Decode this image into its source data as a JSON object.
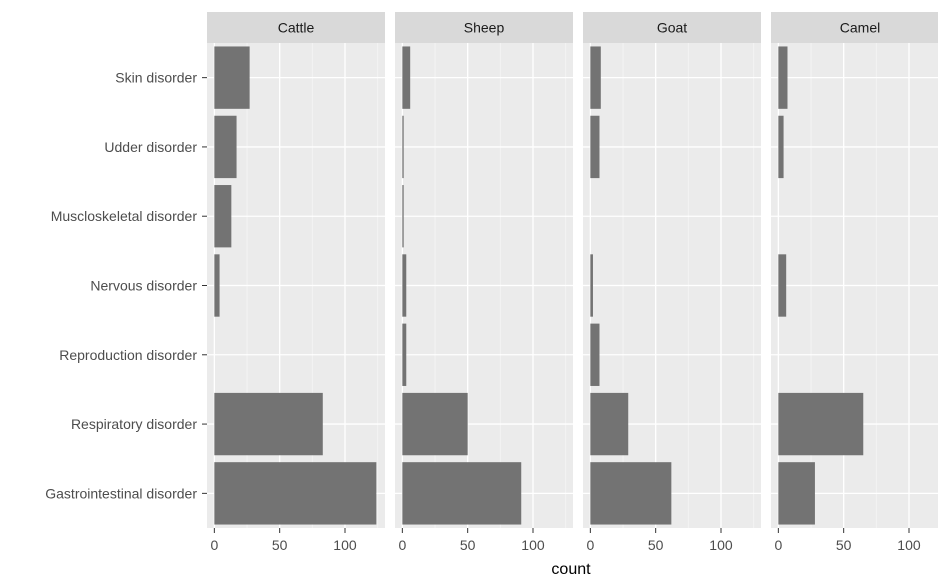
{
  "chart_data": {
    "type": "bar",
    "orientation": "horizontal",
    "faceted": true,
    "xlabel": "count",
    "ylabel": "",
    "xlim": [
      0,
      125
    ],
    "x_ticks": [
      0,
      50,
      100
    ],
    "grid": true,
    "categories": [
      "Skin disorder",
      "Udder disorder",
      "Muscloskeletal disorder",
      "Nervous disorder",
      "Reproduction disorder",
      "Respiratory disorder",
      "Gastrointestinal disorder"
    ],
    "series": [
      {
        "name": "Cattle",
        "values": [
          27,
          17,
          13,
          4,
          0,
          83,
          124
        ]
      },
      {
        "name": "Sheep",
        "values": [
          6,
          1,
          1,
          3,
          3,
          50,
          91
        ]
      },
      {
        "name": "Goat",
        "values": [
          8,
          7,
          0,
          2,
          7,
          29,
          62
        ]
      },
      {
        "name": "Camel",
        "values": [
          7,
          4,
          0,
          6,
          0,
          65,
          28
        ]
      }
    ]
  },
  "colors": {
    "bar": "#737373",
    "panel_bg": "#ebebeb",
    "strip_bg": "#d9d9d9",
    "grid_major": "#ffffff",
    "grid_minor": "#f5f5f5"
  }
}
